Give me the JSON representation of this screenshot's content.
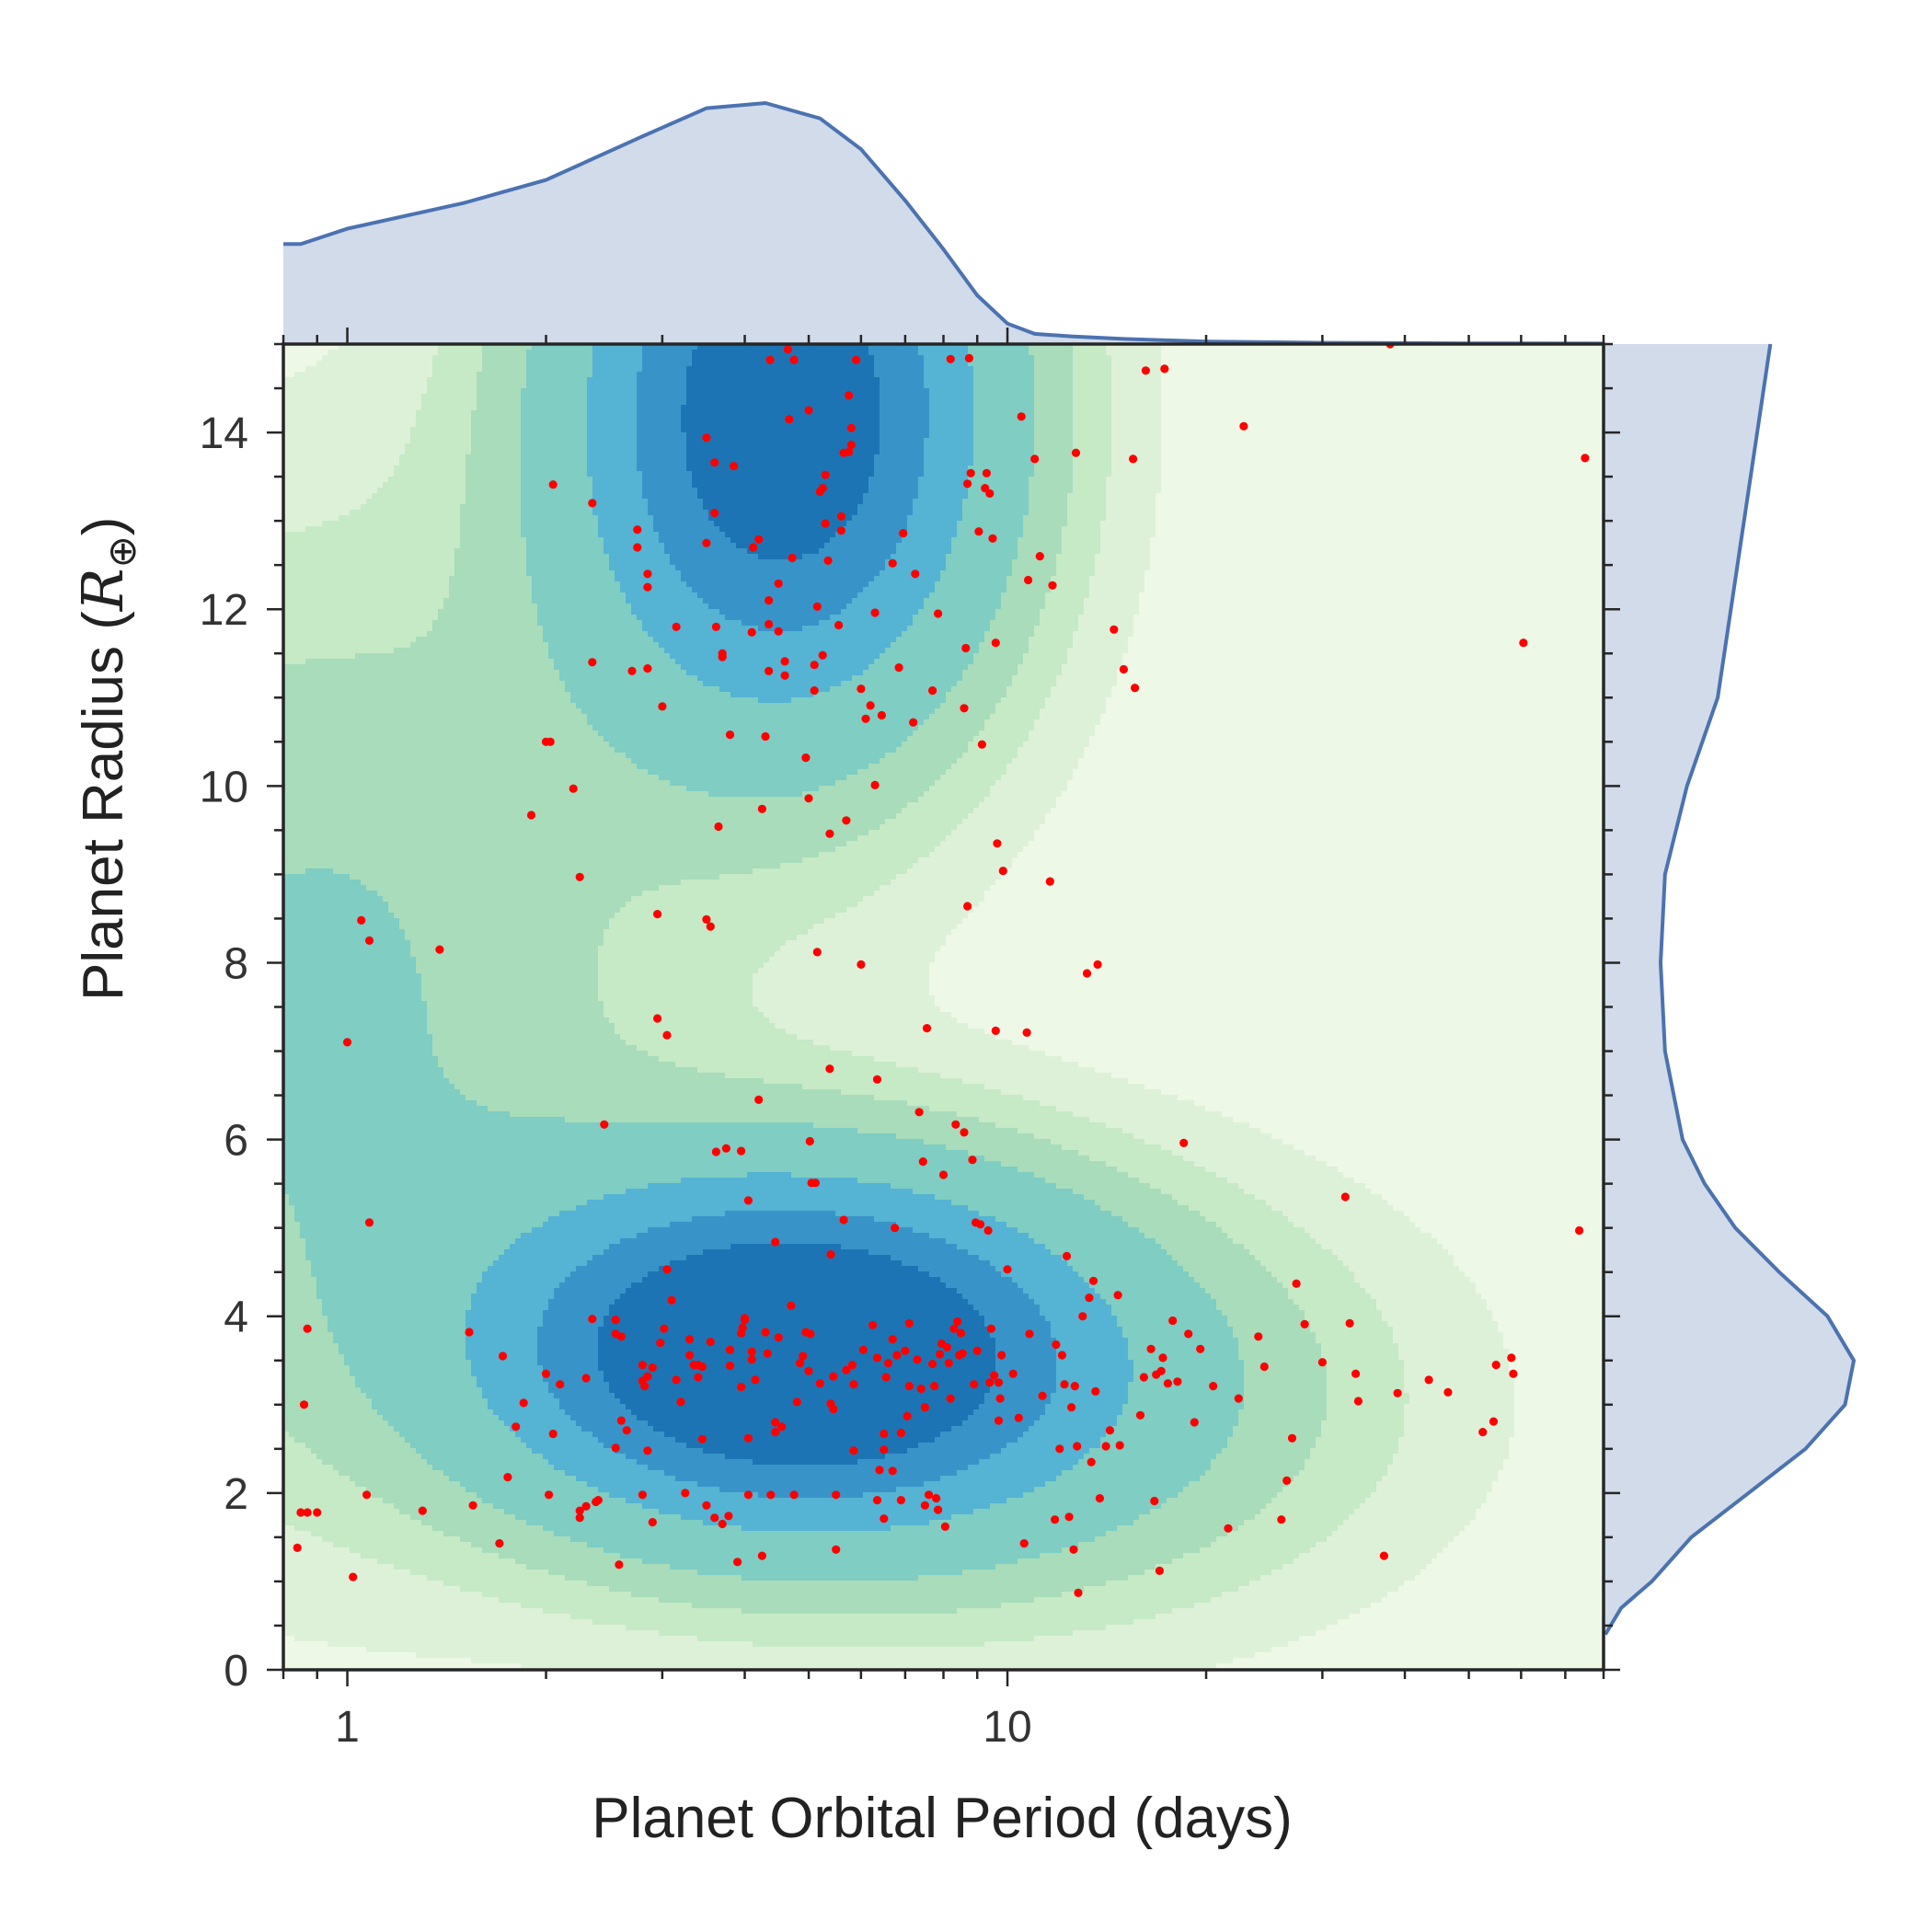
{
  "chart_data": {
    "type": "scatter",
    "kind": "joint plot: scatter over 2D density contours with marginal density curves",
    "xlabel": "Planet Orbital Period (days)",
    "ylabel_main": "Planet Radius (",
    "ylabel_symbol": "R",
    "ylabel_subscript": "⊕",
    "ylabel_close": ")",
    "x_scale": "log",
    "xlim": [
      0.8,
      80
    ],
    "ylim": [
      0,
      15
    ],
    "x_major_ticks": [
      1,
      10
    ],
    "x_tick_labels": [
      "1",
      "10"
    ],
    "y_major_ticks": [
      0,
      2,
      4,
      6,
      8,
      10,
      12,
      14
    ],
    "y_tick_labels": [
      "0",
      "2",
      "4",
      "6",
      "8",
      "10",
      "12",
      "14"
    ],
    "y_minor_step": 0.5,
    "grid": false,
    "colors": {
      "points": "#ff0000",
      "marginal_line": "#4c72b0",
      "marginal_fill": "#d1dbea",
      "contour_levels": [
        "#eef8e6",
        "#ddf1d8",
        "#c6e9c6",
        "#a8dcbb",
        "#7fcdc3",
        "#55b3d3",
        "#3894c8",
        "#1d74b4"
      ]
    },
    "density_components": [
      {
        "log10_center": 0.66,
        "y_center": 3.6,
        "log10_sigma": 0.3,
        "y_sigma": 1.35,
        "weight": 1.0
      },
      {
        "log10_center": 0.66,
        "y_center": 14.2,
        "log10_sigma": 0.22,
        "y_sigma": 2.4,
        "weight": 0.9
      },
      {
        "log10_center": -0.05,
        "y_center": 7.5,
        "log10_sigma": 0.35,
        "y_sigma": 3.5,
        "weight": 0.22
      },
      {
        "log10_center": 1.1,
        "y_center": 3.0,
        "log10_sigma": 0.35,
        "y_sigma": 1.6,
        "weight": 0.18
      }
    ],
    "marginal_x": {
      "x": [
        0.8,
        0.85,
        1.0,
        1.5,
        2.0,
        2.8,
        3.5,
        4.3,
        5.2,
        6.0,
        7.0,
        8.0,
        9.0,
        10.0,
        11.0,
        12.5,
        15.0,
        20.0,
        30.0,
        50.0,
        80.0
      ],
      "density": [
        0.39,
        0.39,
        0.45,
        0.55,
        0.64,
        0.81,
        0.92,
        0.94,
        0.88,
        0.76,
        0.56,
        0.37,
        0.19,
        0.08,
        0.04,
        0.03,
        0.02,
        0.01,
        0.005,
        0.003,
        0.002
      ]
    },
    "marginal_y": {
      "y": [
        0.4,
        0.7,
        1.0,
        1.5,
        2.0,
        2.5,
        3.0,
        3.5,
        4.0,
        4.5,
        5.0,
        5.5,
        6.0,
        7.0,
        8.0,
        9.0,
        10.0,
        11.0,
        12.0,
        13.0,
        14.0,
        15.0
      ],
      "density": [
        0.004,
        0.04,
        0.11,
        0.2,
        0.33,
        0.46,
        0.55,
        0.57,
        0.51,
        0.4,
        0.3,
        0.23,
        0.18,
        0.14,
        0.13,
        0.14,
        0.19,
        0.26,
        0.29,
        0.32,
        0.35,
        0.38
      ]
    },
    "points": [
      [
        0.84,
        1.38
      ],
      [
        0.85,
        1.78
      ],
      [
        0.86,
        3.0
      ],
      [
        0.87,
        1.78
      ],
      [
        0.87,
        3.86
      ],
      [
        0.9,
        1.78
      ],
      [
        1.0,
        7.1
      ],
      [
        1.02,
        1.05
      ],
      [
        1.05,
        8.48
      ],
      [
        1.08,
        8.25
      ],
      [
        1.07,
        1.98
      ],
      [
        1.08,
        5.06
      ],
      [
        1.3,
        1.8
      ],
      [
        1.38,
        8.15
      ],
      [
        1.53,
        3.82
      ],
      [
        1.55,
        1.86
      ],
      [
        1.7,
        1.43
      ],
      [
        1.72,
        3.55
      ],
      [
        1.75,
        2.18
      ],
      [
        1.8,
        2.75
      ],
      [
        1.85,
        3.02
      ],
      [
        1.9,
        9.67
      ],
      [
        2.0,
        10.5
      ],
      [
        2.03,
        10.5
      ],
      [
        2.05,
        13.41
      ],
      [
        2.05,
        2.67
      ],
      [
        2.0,
        3.35
      ],
      [
        2.02,
        1.98
      ],
      [
        2.1,
        3.23
      ],
      [
        2.2,
        9.97
      ],
      [
        2.25,
        1.72
      ],
      [
        2.25,
        1.8
      ],
      [
        2.25,
        8.97
      ],
      [
        2.3,
        3.3
      ],
      [
        2.3,
        1.85
      ],
      [
        2.38,
        1.9
      ],
      [
        2.35,
        11.4
      ],
      [
        2.35,
        13.2
      ],
      [
        2.35,
        3.97
      ],
      [
        2.4,
        1.92
      ],
      [
        2.45,
        6.17
      ],
      [
        2.55,
        3.96
      ],
      [
        2.55,
        2.51
      ],
      [
        2.55,
        3.8
      ],
      [
        2.58,
        1.19
      ],
      [
        2.6,
        3.77
      ],
      [
        2.6,
        2.82
      ],
      [
        2.65,
        2.71
      ],
      [
        2.7,
        11.3
      ],
      [
        2.75,
        12.7
      ],
      [
        2.75,
        12.9
      ],
      [
        2.8,
        3.45
      ],
      [
        2.8,
        1.98
      ],
      [
        2.8,
        3.27
      ],
      [
        2.82,
        3.21
      ],
      [
        2.85,
        3.32
      ],
      [
        2.85,
        2.48
      ],
      [
        2.85,
        12.25
      ],
      [
        2.85,
        12.4
      ],
      [
        2.85,
        11.33
      ],
      [
        2.9,
        1.67
      ],
      [
        2.9,
        3.42
      ],
      [
        2.95,
        8.55
      ],
      [
        2.95,
        7.37
      ],
      [
        2.98,
        3.7
      ],
      [
        3.0,
        10.9
      ],
      [
        3.02,
        3.86
      ],
      [
        3.05,
        7.18
      ],
      [
        3.05,
        4.53
      ],
      [
        3.1,
        4.18
      ],
      [
        3.15,
        3.28
      ],
      [
        3.15,
        11.8
      ],
      [
        3.2,
        3.03
      ],
      [
        3.25,
        2.0
      ],
      [
        3.3,
        3.56
      ],
      [
        3.3,
        3.74
      ],
      [
        3.35,
        3.45
      ],
      [
        3.4,
        3.45
      ],
      [
        3.4,
        3.31
      ],
      [
        3.45,
        3.43
      ],
      [
        3.45,
        2.61
      ],
      [
        3.5,
        8.49
      ],
      [
        3.5,
        12.75
      ],
      [
        3.5,
        13.94
      ],
      [
        3.5,
        1.86
      ],
      [
        3.55,
        8.41
      ],
      [
        3.55,
        3.71
      ],
      [
        3.6,
        1.72
      ],
      [
        3.6,
        13.66
      ],
      [
        3.62,
        11.8
      ],
      [
        3.62,
        5.86
      ],
      [
        3.6,
        13.09
      ],
      [
        3.65,
        9.54
      ],
      [
        3.7,
        11.46
      ],
      [
        3.7,
        11.5
      ],
      [
        3.7,
        1.65
      ],
      [
        3.75,
        5.9
      ],
      [
        3.78,
        1.74
      ],
      [
        3.8,
        3.62
      ],
      [
        3.8,
        3.44
      ],
      [
        3.8,
        10.58
      ],
      [
        3.85,
        13.62
      ],
      [
        3.9,
        1.22
      ],
      [
        3.95,
        3.81
      ],
      [
        3.95,
        3.2
      ],
      [
        3.95,
        5.87
      ],
      [
        3.97,
        3.87
      ],
      [
        4.0,
        3.96
      ],
      [
        4.0,
        3.98
      ],
      [
        4.05,
        1.98
      ],
      [
        4.05,
        2.62
      ],
      [
        4.05,
        5.31
      ],
      [
        4.1,
        3.51
      ],
      [
        4.1,
        3.6
      ],
      [
        4.1,
        11.74
      ],
      [
        4.12,
        12.7
      ],
      [
        4.15,
        3.28
      ],
      [
        4.2,
        12.79
      ],
      [
        4.2,
        6.45
      ],
      [
        4.25,
        1.29
      ],
      [
        4.25,
        9.74
      ],
      [
        4.3,
        10.56
      ],
      [
        4.3,
        3.82
      ],
      [
        4.33,
        3.58
      ],
      [
        4.35,
        11.83
      ],
      [
        4.35,
        12.1
      ],
      [
        4.35,
        11.3
      ],
      [
        4.37,
        14.82
      ],
      [
        4.38,
        1.98
      ],
      [
        4.45,
        4.84
      ],
      [
        4.45,
        2.69
      ],
      [
        4.45,
        2.8
      ],
      [
        4.5,
        11.75
      ],
      [
        4.5,
        3.76
      ],
      [
        4.5,
        12.29
      ],
      [
        4.55,
        2.75
      ],
      [
        4.6,
        11.41
      ],
      [
        4.6,
        11.25
      ],
      [
        4.65,
        14.94
      ],
      [
        4.67,
        14.15
      ],
      [
        4.7,
        4.12
      ],
      [
        4.72,
        12.58
      ],
      [
        4.75,
        1.98
      ],
      [
        4.75,
        14.82
      ],
      [
        4.8,
        3.03
      ],
      [
        4.85,
        3.47
      ],
      [
        4.9,
        3.55
      ],
      [
        4.95,
        3.82
      ],
      [
        4.95,
        10.32
      ],
      [
        5.0,
        14.25
      ],
      [
        5.0,
        3.38
      ],
      [
        5.0,
        9.86
      ],
      [
        5.02,
        5.98
      ],
      [
        5.03,
        3.8
      ],
      [
        5.05,
        5.51
      ],
      [
        5.1,
        11.08
      ],
      [
        5.1,
        11.37
      ],
      [
        5.12,
        5.51
      ],
      [
        5.15,
        12.03
      ],
      [
        5.15,
        8.12
      ],
      [
        5.2,
        3.24
      ],
      [
        5.2,
        13.33
      ],
      [
        5.25,
        13.37
      ],
      [
        5.25,
        11.48
      ],
      [
        5.3,
        13.52
      ],
      [
        5.35,
        12.55
      ],
      [
        5.3,
        12.97
      ],
      [
        5.38,
        9.46
      ],
      [
        5.38,
        6.8
      ],
      [
        5.4,
        3.01
      ],
      [
        5.4,
        4.7
      ],
      [
        5.45,
        2.95
      ],
      [
        5.45,
        3.32
      ],
      [
        5.5,
        1.98
      ],
      [
        5.5,
        1.36
      ],
      [
        5.55,
        11.82
      ],
      [
        5.6,
        12.89
      ],
      [
        5.6,
        13.05
      ],
      [
        5.65,
        13.77
      ],
      [
        5.65,
        5.09
      ],
      [
        5.7,
        9.61
      ],
      [
        5.7,
        3.39
      ],
      [
        5.75,
        14.42
      ],
      [
        5.75,
        13.78
      ],
      [
        5.8,
        13.86
      ],
      [
        5.8,
        14.05
      ],
      [
        5.82,
        3.45
      ],
      [
        5.85,
        2.48
      ],
      [
        5.85,
        3.23
      ],
      [
        5.9,
        14.82
      ],
      [
        6.0,
        11.1
      ],
      [
        6.0,
        7.98
      ],
      [
        6.05,
        3.62
      ],
      [
        6.1,
        10.76
      ],
      [
        6.2,
        10.91
      ],
      [
        6.25,
        3.9
      ],
      [
        6.3,
        10.01
      ],
      [
        6.3,
        11.96
      ],
      [
        6.35,
        1.92
      ],
      [
        6.35,
        3.53
      ],
      [
        6.35,
        6.68
      ],
      [
        6.4,
        2.26
      ],
      [
        6.45,
        10.8
      ],
      [
        6.5,
        1.71
      ],
      [
        6.5,
        2.49
      ],
      [
        6.5,
        2.67
      ],
      [
        6.55,
        3.31
      ],
      [
        6.6,
        3.47
      ],
      [
        6.7,
        12.52
      ],
      [
        6.7,
        2.25
      ],
      [
        6.7,
        3.74
      ],
      [
        6.75,
        5.0
      ],
      [
        6.8,
        3.56
      ],
      [
        6.85,
        11.34
      ],
      [
        6.9,
        2.68
      ],
      [
        6.9,
        1.92
      ],
      [
        6.95,
        12.86
      ],
      [
        7.0,
        3.61
      ],
      [
        7.05,
        2.87
      ],
      [
        7.1,
        3.21
      ],
      [
        7.1,
        3.92
      ],
      [
        7.2,
        10.72
      ],
      [
        7.25,
        12.4
      ],
      [
        7.3,
        3.51
      ],
      [
        7.35,
        6.31
      ],
      [
        7.4,
        3.18
      ],
      [
        7.45,
        5.75
      ],
      [
        7.5,
        2.97
      ],
      [
        7.5,
        1.86
      ],
      [
        7.55,
        7.26
      ],
      [
        7.6,
        1.98
      ],
      [
        7.7,
        11.08
      ],
      [
        7.7,
        3.46
      ],
      [
        7.75,
        3.21
      ],
      [
        7.8,
        1.94
      ],
      [
        7.85,
        11.95
      ],
      [
        7.85,
        1.81
      ],
      [
        7.9,
        3.57
      ],
      [
        7.95,
        3.69
      ],
      [
        8.0,
        5.6
      ],
      [
        8.05,
        1.62
      ],
      [
        8.1,
        3.65
      ],
      [
        8.15,
        3.47
      ],
      [
        8.2,
        3.07
      ],
      [
        8.2,
        14.83
      ],
      [
        8.3,
        3.86
      ],
      [
        8.35,
        6.17
      ],
      [
        8.4,
        3.94
      ],
      [
        8.45,
        3.56
      ],
      [
        8.5,
        3.81
      ],
      [
        8.55,
        3.58
      ],
      [
        8.6,
        6.08
      ],
      [
        8.6,
        10.88
      ],
      [
        8.65,
        11.56
      ],
      [
        8.7,
        8.64
      ],
      [
        8.7,
        13.42
      ],
      [
        8.75,
        14.84
      ],
      [
        8.8,
        13.54
      ],
      [
        8.85,
        5.77
      ],
      [
        8.9,
        3.23
      ],
      [
        8.95,
        5.06
      ],
      [
        9.0,
        3.61
      ],
      [
        9.05,
        12.88
      ],
      [
        9.1,
        5.04
      ],
      [
        9.15,
        10.47
      ],
      [
        9.25,
        13.37
      ],
      [
        9.3,
        13.54
      ],
      [
        9.35,
        4.97
      ],
      [
        9.4,
        3.25
      ],
      [
        9.4,
        13.31
      ],
      [
        9.45,
        3.86
      ],
      [
        9.5,
        12.8
      ],
      [
        9.55,
        3.33
      ],
      [
        9.6,
        7.23
      ],
      [
        9.6,
        11.62
      ],
      [
        9.65,
        9.35
      ],
      [
        9.7,
        2.82
      ],
      [
        9.7,
        3.25
      ],
      [
        9.75,
        3.07
      ],
      [
        9.8,
        3.56
      ],
      [
        9.85,
        9.04
      ],
      [
        10.0,
        4.53
      ],
      [
        10.2,
        3.35
      ],
      [
        10.4,
        2.85
      ],
      [
        10.5,
        14.18
      ],
      [
        10.6,
        1.43
      ],
      [
        10.7,
        7.21
      ],
      [
        10.75,
        12.33
      ],
      [
        10.8,
        3.8
      ],
      [
        11.0,
        13.7
      ],
      [
        11.2,
        12.6
      ],
      [
        11.3,
        3.1
      ],
      [
        11.6,
        8.92
      ],
      [
        11.7,
        12.27
      ],
      [
        11.8,
        1.7
      ],
      [
        11.85,
        3.68
      ],
      [
        12.0,
        2.5
      ],
      [
        12.1,
        3.56
      ],
      [
        12.2,
        3.23
      ],
      [
        12.3,
        4.68
      ],
      [
        12.4,
        1.73
      ],
      [
        12.5,
        2.97
      ],
      [
        12.6,
        1.36
      ],
      [
        12.65,
        3.21
      ],
      [
        12.7,
        13.77
      ],
      [
        12.75,
        2.53
      ],
      [
        12.8,
        0.87
      ],
      [
        13.0,
        4.0
      ],
      [
        13.2,
        7.88
      ],
      [
        13.3,
        4.21
      ],
      [
        13.4,
        2.35
      ],
      [
        13.5,
        4.4
      ],
      [
        13.6,
        3.15
      ],
      [
        13.7,
        7.98
      ],
      [
        13.8,
        1.94
      ],
      [
        14.1,
        2.53
      ],
      [
        14.3,
        2.71
      ],
      [
        14.5,
        11.77
      ],
      [
        14.7,
        4.24
      ],
      [
        14.8,
        2.54
      ],
      [
        15.0,
        11.32
      ],
      [
        15.5,
        13.7
      ],
      [
        15.6,
        11.11
      ],
      [
        15.9,
        2.88
      ],
      [
        16.1,
        3.31
      ],
      [
        16.2,
        14.7
      ],
      [
        16.5,
        3.63
      ],
      [
        16.7,
        1.91
      ],
      [
        16.8,
        3.34
      ],
      [
        17.0,
        1.12
      ],
      [
        17.1,
        3.38
      ],
      [
        17.2,
        3.53
      ],
      [
        17.3,
        14.72
      ],
      [
        17.5,
        3.24
      ],
      [
        17.8,
        3.95
      ],
      [
        18.1,
        3.26
      ],
      [
        18.5,
        5.96
      ],
      [
        18.8,
        3.8
      ],
      [
        19.2,
        2.8
      ],
      [
        19.6,
        3.63
      ],
      [
        20.5,
        3.21
      ],
      [
        21.6,
        1.6
      ],
      [
        22.4,
        3.07
      ],
      [
        22.8,
        14.07
      ],
      [
        24.0,
        3.77
      ],
      [
        24.5,
        3.43
      ],
      [
        26.0,
        1.7
      ],
      [
        26.5,
        2.14
      ],
      [
        27.0,
        2.62
      ],
      [
        27.4,
        4.37
      ],
      [
        28.2,
        3.91
      ],
      [
        30.0,
        3.48
      ],
      [
        32.5,
        5.35
      ],
      [
        33.0,
        3.92
      ],
      [
        33.7,
        3.35
      ],
      [
        34.0,
        3.04
      ],
      [
        37.2,
        1.29
      ],
      [
        38.0,
        15.0
      ],
      [
        39.0,
        3.13
      ],
      [
        43.5,
        3.28
      ],
      [
        46.5,
        3.14
      ],
      [
        52.5,
        2.69
      ],
      [
        54.5,
        2.81
      ],
      [
        55.0,
        3.45
      ],
      [
        58.0,
        3.53
      ],
      [
        58.4,
        3.35
      ],
      [
        60.5,
        11.62
      ],
      [
        73.5,
        4.97
      ],
      [
        75.0,
        13.71
      ]
    ]
  }
}
